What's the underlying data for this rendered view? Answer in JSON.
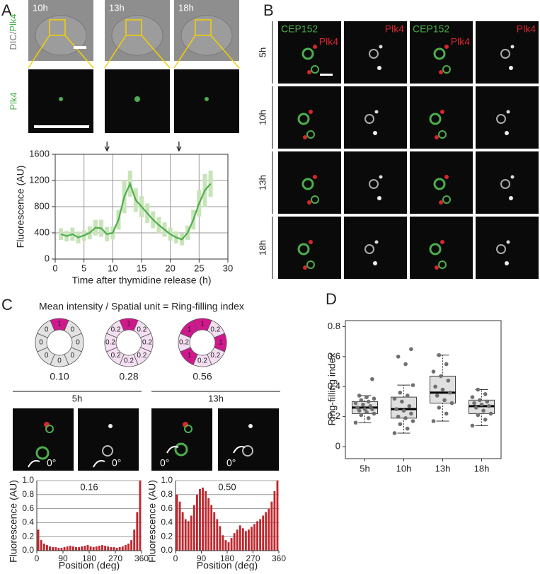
{
  "panel_a": {
    "letter": "A",
    "times": [
      "10h",
      "13h",
      "18h"
    ],
    "channel_labels": [
      "DIC/",
      "Plk4"
    ],
    "zoom_label": "Plk4",
    "chart": {
      "type": "line",
      "xlabel": "Time after thymidine release (h)",
      "ylabel": "Fluorescence (AU)",
      "xlim": [
        0,
        30
      ],
      "ylim": [
        0,
        1600
      ],
      "xticks": [
        0,
        5,
        10,
        15,
        20,
        25,
        30
      ],
      "yticks": [
        0,
        400,
        800,
        1200,
        1600
      ],
      "grid": true,
      "arrows_x": [
        9,
        21.5
      ],
      "series": [
        {
          "color": "#4cae4c",
          "error_color": "#c8e4b8",
          "x": [
            1,
            2,
            3,
            4,
            5,
            6,
            7,
            8,
            9,
            10,
            11,
            12,
            13,
            14,
            15,
            16,
            17,
            18,
            19,
            20,
            21,
            22,
            23,
            24,
            25,
            26,
            27
          ],
          "values": [
            380,
            350,
            380,
            330,
            360,
            400,
            480,
            470,
            380,
            400,
            600,
            950,
            1150,
            900,
            800,
            700,
            600,
            520,
            450,
            380,
            330,
            300,
            400,
            600,
            850,
            1050,
            1150
          ],
          "error": [
            90,
            80,
            100,
            90,
            80,
            100,
            120,
            130,
            110,
            100,
            150,
            250,
            200,
            180,
            160,
            150,
            130,
            120,
            110,
            100,
            90,
            90,
            110,
            150,
            200,
            250,
            200
          ]
        }
      ]
    }
  },
  "panel_b": {
    "letter": "B",
    "column_labels": [
      [
        "CEP152",
        "Plk4"
      ],
      [
        "Plk4"
      ],
      [
        "CEP152",
        "Plk4"
      ],
      [
        "Plk4"
      ]
    ],
    "rows": [
      "5h",
      "10h",
      "13h",
      "18h"
    ]
  },
  "panel_c": {
    "letter": "C",
    "title": "Mean intensity / Spatial unit = Ring-filling index",
    "segment_colors": [
      "#e2e2e2",
      "#f4def1",
      "#d0178d"
    ],
    "rings": [
      {
        "segments": [
          1,
          0,
          0,
          0,
          0,
          0,
          0,
          0
        ],
        "index": "0.10"
      },
      {
        "segments": [
          1,
          0.2,
          0.2,
          0.2,
          0.2,
          0.2,
          0.2,
          0.2
        ],
        "index": "0.28"
      },
      {
        "segments": [
          1,
          0.2,
          1,
          0.2,
          0.2,
          1,
          0.2,
          1
        ],
        "index": "0.56"
      }
    ],
    "time_labels": [
      "5h",
      "13h"
    ],
    "angle_label": "0°",
    "charts": [
      {
        "type": "bar",
        "annotation": "0.16",
        "xlabel": "Position (deg)",
        "ylabel": "Fluorescence (AU)",
        "color": "#c0282e",
        "xlim": [
          0,
          360
        ],
        "xticks": [
          0,
          90,
          180,
          270,
          360
        ],
        "ylim": [
          0,
          1
        ],
        "yticks": [
          {
            "value": 0,
            "label": "0.0"
          },
          0.2,
          0.4,
          0.6,
          0.8,
          {
            "value": 1,
            "label": "1.0"
          }
        ],
        "x": [
          5,
          15,
          25,
          35,
          45,
          55,
          65,
          75,
          85,
          95,
          105,
          115,
          125,
          135,
          145,
          155,
          165,
          175,
          185,
          195,
          205,
          215,
          225,
          235,
          245,
          255,
          265,
          275,
          285,
          295,
          305,
          315,
          325,
          335,
          345,
          355
        ],
        "values": [
          0.3,
          0.15,
          0.1,
          0.08,
          0.06,
          0.05,
          0.05,
          0.04,
          0.04,
          0.05,
          0.06,
          0.07,
          0.06,
          0.05,
          0.05,
          0.06,
          0.07,
          0.08,
          0.06,
          0.05,
          0.06,
          0.07,
          0.08,
          0.07,
          0.06,
          0.05,
          0.05,
          0.04,
          0.05,
          0.06,
          0.08,
          0.1,
          0.15,
          0.3,
          0.55,
          1.0
        ]
      },
      {
        "type": "bar",
        "annotation": "0.50",
        "xlabel": "Position (deg)",
        "ylabel": "Fluorescence (AU)",
        "color": "#c0282e",
        "xlim": [
          0,
          360
        ],
        "xticks": [
          0,
          90,
          180,
          270,
          360
        ],
        "ylim": [
          0,
          1
        ],
        "yticks": [
          {
            "value": 0,
            "label": "0.0"
          },
          0.2,
          0.4,
          0.6,
          0.8,
          {
            "value": 1,
            "label": "1.0"
          }
        ],
        "x": [
          5,
          15,
          25,
          35,
          45,
          55,
          65,
          75,
          85,
          95,
          105,
          115,
          125,
          135,
          145,
          155,
          165,
          175,
          185,
          195,
          205,
          215,
          225,
          235,
          245,
          255,
          265,
          275,
          285,
          295,
          305,
          315,
          325,
          335,
          345,
          355
        ],
        "values": [
          0.8,
          0.7,
          0.55,
          0.45,
          0.42,
          0.5,
          0.65,
          0.8,
          0.88,
          0.9,
          0.85,
          0.75,
          0.65,
          0.55,
          0.45,
          0.35,
          0.22,
          0.15,
          0.12,
          0.18,
          0.25,
          0.3,
          0.36,
          0.32,
          0.28,
          0.3,
          0.34,
          0.38,
          0.42,
          0.45,
          0.5,
          0.55,
          0.6,
          0.7,
          0.85,
          1.0
        ]
      }
    ]
  },
  "panel_d": {
    "letter": "D",
    "chart": {
      "type": "box",
      "ylabel": "Ring-filling index",
      "categories": [
        "5h",
        "10h",
        "13h",
        "18h"
      ],
      "ylim": [
        -0.08,
        0.84
      ],
      "yticks": [
        0,
        0.2,
        0.4,
        0.6,
        0.8
      ],
      "box_color": "#e0e0e0",
      "point_color": "#707070",
      "q1": [
        0.22,
        0.19,
        0.29,
        0.22
      ],
      "median": [
        0.26,
        0.25,
        0.36,
        0.27
      ],
      "q3": [
        0.3,
        0.33,
        0.47,
        0.31
      ],
      "whisker_low": [
        0.16,
        0.09,
        0.17,
        0.14
      ],
      "whisker_high": [
        0.34,
        0.41,
        0.61,
        0.38
      ],
      "points": [
        [
          0.16,
          0.19,
          0.21,
          0.22,
          0.23,
          0.24,
          0.25,
          0.25,
          0.26,
          0.27,
          0.28,
          0.29,
          0.3,
          0.31,
          0.32,
          0.33,
          0.34,
          0.45
        ],
        [
          0.09,
          0.12,
          0.15,
          0.17,
          0.19,
          0.2,
          0.22,
          0.24,
          0.25,
          0.27,
          0.3,
          0.32,
          0.34,
          0.36,
          0.41,
          0.55,
          0.6,
          0.65
        ],
        [
          0.17,
          0.22,
          0.26,
          0.29,
          0.31,
          0.34,
          0.36,
          0.38,
          0.4,
          0.44,
          0.47,
          0.5,
          0.55,
          0.61
        ],
        [
          0.14,
          0.18,
          0.21,
          0.22,
          0.24,
          0.26,
          0.27,
          0.28,
          0.29,
          0.3,
          0.31,
          0.33,
          0.35,
          0.38
        ]
      ]
    }
  }
}
